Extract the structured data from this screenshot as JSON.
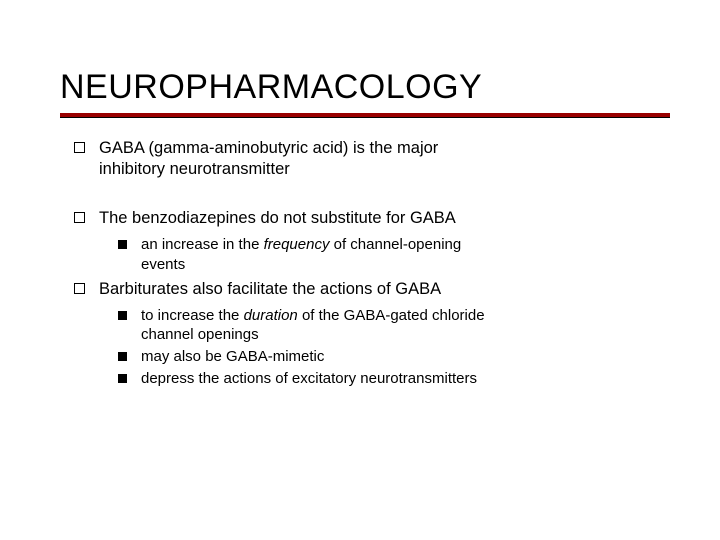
{
  "slide": {
    "title": "NEUROPHARMACOLOGY",
    "title_color": "#000000",
    "title_fontsize": 34,
    "rule_color": "#990000",
    "rule_thickness": 4,
    "background": "#ffffff",
    "body_font": "Verdana",
    "b1": {
      "text_a": "GABA (gamma-aminobutyric acid) is the major",
      "text_b": "inhibitory neurotransmitter"
    },
    "b2": {
      "text": "The benzodiazepines do not substitute for GABA",
      "sub1_a": "an increase in the ",
      "sub1_em": "frequency",
      "sub1_b": " of channel-opening",
      "sub1_c": "events"
    },
    "b3": {
      "text": "Barbiturates also facilitate the actions of GABA",
      "sub1_a": "to increase the ",
      "sub1_em": "duration",
      "sub1_b": " of the GABA-gated chloride",
      "sub1_c": "channel openings",
      "sub2": "may also be GABA-mimetic",
      "sub3": "depress the actions of excitatory neurotransmitters"
    }
  }
}
